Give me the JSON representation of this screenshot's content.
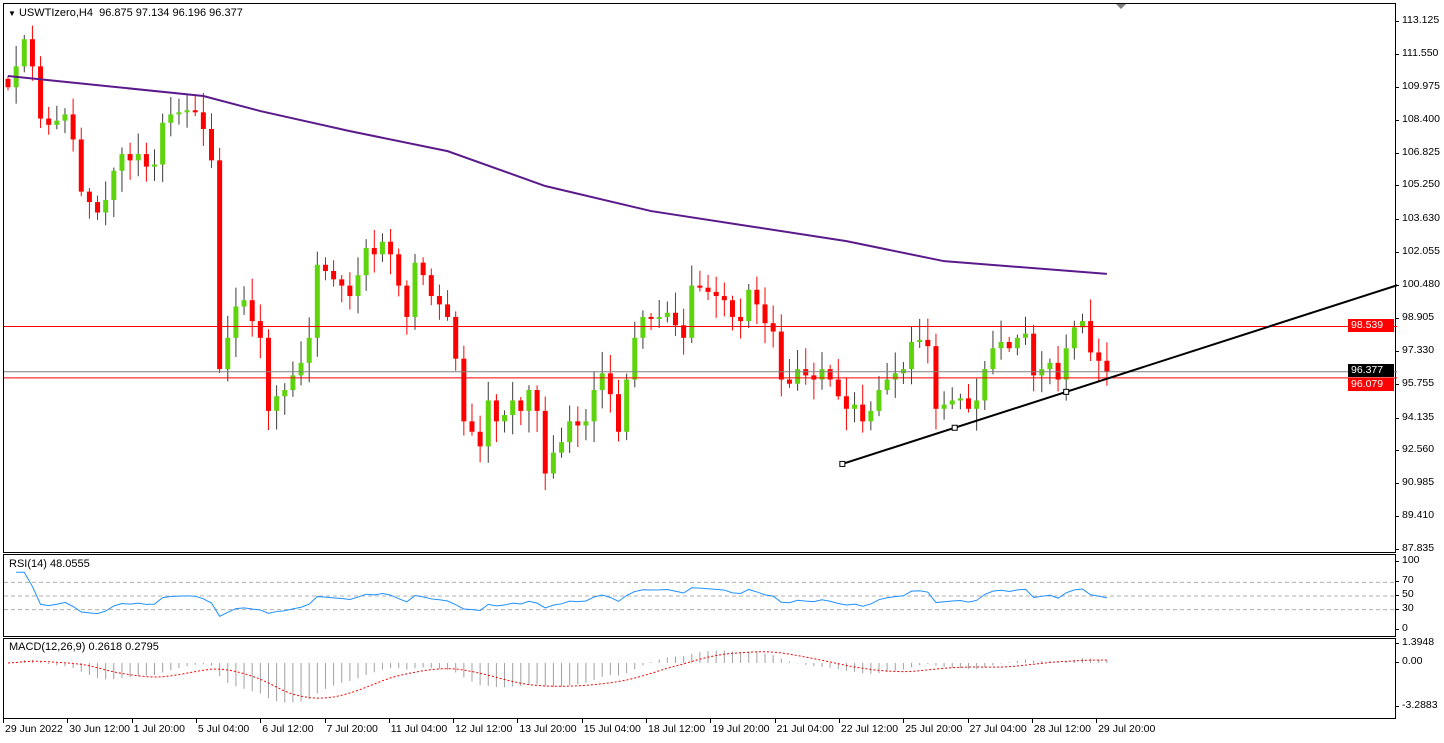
{
  "header": {
    "symbol": "USWTIzero,H4",
    "ohlc": "96.875 97.134 96.196 96.377"
  },
  "colors": {
    "bull": "#5fd40c",
    "bear": "#ff0000",
    "ma": "#5a1a8c",
    "rsi": "#1e90ff",
    "macd_signal": "#ff0000",
    "macd_hist": "#a0a0a0",
    "hline": "#ff0000"
  },
  "chart_data": {
    "type": "candlestick",
    "title": "USWTIzero,H4",
    "y_ticks": [
      "113.125",
      "111.550",
      "109.975",
      "108.400",
      "106.825",
      "105.250",
      "103.630",
      "102.055",
      "100.480",
      "98.905",
      "97.330",
      "95.755",
      "94.135",
      "92.560",
      "90.985",
      "89.410",
      "87.835"
    ],
    "ylim": [
      87.835,
      113.125
    ],
    "x_ticks": [
      "29 Jun 2022",
      "30 Jun 12:00",
      "1 Jul 20:00",
      "5 Jul 04:00",
      "6 Jul 12:00",
      "7 Jul 20:00",
      "11 Jul 04:00",
      "12 Jul 12:00",
      "13 Jul 20:00",
      "15 Jul 04:00",
      "18 Jul 12:00",
      "19 Jul 20:00",
      "21 Jul 04:00",
      "22 Jul 12:00",
      "25 Jul 20:00",
      "27 Jul 04:00",
      "28 Jul 12:00",
      "29 Jul 20:00"
    ],
    "closes": [
      110.0,
      111.0,
      112.3,
      111.0,
      108.5,
      108.2,
      108.4,
      108.7,
      107.5,
      105.0,
      104.5,
      104.0,
      104.6,
      106.0,
      106.8,
      106.5,
      106.8,
      106.2,
      106.3,
      108.3,
      108.7,
      108.8,
      108.9,
      108.8,
      108.0,
      106.5,
      96.5,
      98.0,
      99.5,
      99.8,
      98.8,
      98.0,
      94.5,
      95.2,
      95.5,
      96.2,
      96.8,
      98.0,
      101.5,
      101.2,
      100.8,
      100.5,
      100.0,
      101.0,
      102.3,
      102.0,
      102.6,
      102.0,
      100.5,
      99.0,
      101.6,
      101.0,
      100.0,
      99.6,
      99.0,
      97.0,
      94.0,
      93.5,
      92.8,
      95.0,
      94.0,
      94.3,
      95.0,
      94.5,
      95.5,
      94.5,
      91.5,
      92.5,
      93.0,
      94.0,
      93.8,
      94.0,
      95.5,
      96.3,
      95.3,
      93.5,
      96.0,
      98.0,
      99.0,
      98.9,
      99.0,
      99.2,
      98.6,
      98.0,
      100.5,
      100.4,
      100.2,
      100.0,
      99.8,
      99.0,
      98.8,
      100.3,
      99.6,
      98.7,
      98.3,
      96.0,
      95.8,
      96.5,
      96.2,
      96.0,
      96.5,
      96.0,
      95.2,
      94.6,
      94.8,
      94.0,
      94.5,
      95.5,
      96.0,
      96.3,
      96.5,
      97.8,
      97.9,
      97.6,
      94.6,
      94.8,
      95.0,
      95.1,
      94.6,
      95.0,
      96.5,
      97.5,
      97.8,
      97.5,
      98.0,
      98.2,
      96.2,
      96.5,
      96.8,
      96.0,
      97.5,
      98.5,
      98.8,
      97.3,
      96.9,
      96.377
    ],
    "moving_average": {
      "points_index": [
        0,
        12,
        24,
        31,
        42,
        54,
        66,
        79,
        91,
        103,
        115,
        135
      ],
      "values": [
        110.54,
        110.06,
        109.58,
        108.86,
        107.9,
        106.94,
        105.27,
        104.07,
        103.35,
        102.63,
        101.67,
        101.06
      ]
    },
    "trendline": {
      "anchors_index": [
        102.5,
        116.3,
        130.0
      ],
      "start": [
        102.5,
        91.96
      ],
      "end": [
        175.0,
        101.06
      ]
    },
    "hlines": [
      {
        "price": 98.539,
        "label": "98.539",
        "color": "#ff0000"
      },
      {
        "price": 96.377,
        "label": "96.377",
        "color": "#808080",
        "tag_bg": "#000000"
      },
      {
        "price": 96.079,
        "label": "96.079",
        "color": "#ff0000"
      }
    ],
    "rsi": {
      "label": "RSI(14) 48.0555",
      "period": 14,
      "levels": [
        70,
        50,
        30
      ],
      "ticks": [
        "100",
        "70",
        "50",
        "30",
        "0"
      ]
    },
    "macd": {
      "label": "MACD(12,26,9) 0.2618 0.2795",
      "fast": 12,
      "slow": 26,
      "signal": 9,
      "ticks": [
        "1.3948",
        "0.00",
        "-3.2883"
      ],
      "ylim": [
        -3.2883,
        1.3948
      ]
    }
  }
}
